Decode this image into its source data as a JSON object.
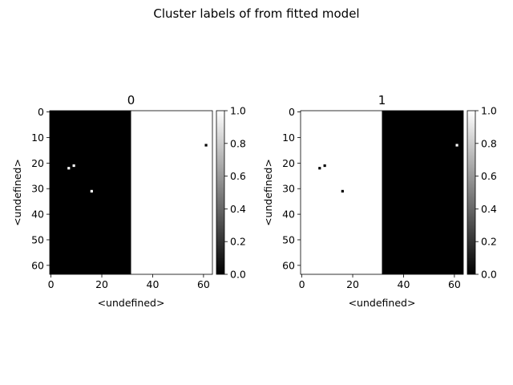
{
  "figure": {
    "suptitle": "Cluster labels of  from fitted model"
  },
  "chart_data": [
    {
      "type": "heatmap",
      "title": "0",
      "xlabel": "<undefined>",
      "ylabel": "<undefined>",
      "shape": [
        64,
        64
      ],
      "xlim": [
        -0.5,
        63.5
      ],
      "ylim": [
        63.5,
        -0.5
      ],
      "xticks": [
        0,
        20,
        40,
        60
      ],
      "yticks": [
        0,
        10,
        20,
        30,
        40,
        50,
        60
      ],
      "colormap": "gray",
      "clim": [
        0.0,
        1.0
      ],
      "base_rule": "value 0 for columns 0-31, value 1 for columns 32-63",
      "base_split_column": 32,
      "base_left_value": 0,
      "base_right_value": 1,
      "flipped_cells": [
        {
          "row": 22,
          "col": 7,
          "value": 1
        },
        {
          "row": 21,
          "col": 9,
          "value": 1
        },
        {
          "row": 31,
          "col": 16,
          "value": 1
        },
        {
          "row": 13,
          "col": 61,
          "value": 0
        }
      ],
      "colorbar": {
        "ticks": [
          "0.0",
          "0.2",
          "0.4",
          "0.6",
          "0.8",
          "1.0"
        ]
      }
    },
    {
      "type": "heatmap",
      "title": "1",
      "xlabel": "<undefined>",
      "ylabel": "<undefined>",
      "shape": [
        64,
        64
      ],
      "xlim": [
        -0.5,
        63.5
      ],
      "ylim": [
        63.5,
        -0.5
      ],
      "xticks": [
        0,
        20,
        40,
        60
      ],
      "yticks": [
        0,
        10,
        20,
        30,
        40,
        50,
        60
      ],
      "colormap": "gray",
      "clim": [
        0.0,
        1.0
      ],
      "base_rule": "value 1 for columns 0-31, value 0 for columns 32-63",
      "base_split_column": 32,
      "base_left_value": 1,
      "base_right_value": 0,
      "flipped_cells": [
        {
          "row": 22,
          "col": 7,
          "value": 0
        },
        {
          "row": 21,
          "col": 9,
          "value": 0
        },
        {
          "row": 31,
          "col": 16,
          "value": 0
        },
        {
          "row": 13,
          "col": 61,
          "value": 1
        }
      ],
      "colorbar": {
        "ticks": [
          "0.0",
          "0.2",
          "0.4",
          "0.6",
          "0.8",
          "1.0"
        ]
      }
    }
  ]
}
